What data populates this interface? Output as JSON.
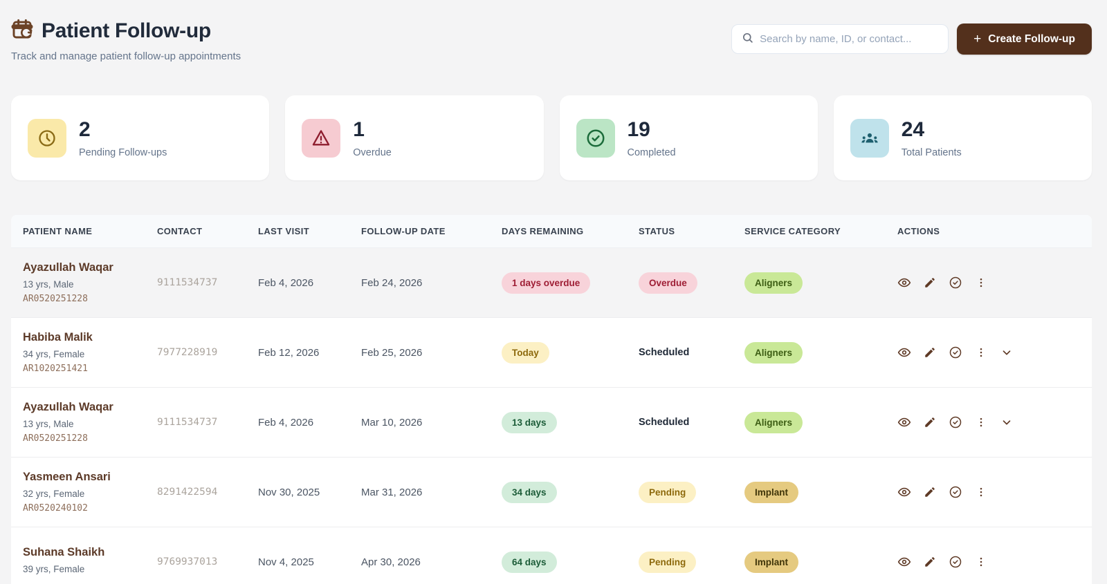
{
  "header": {
    "title": "Patient Follow-up",
    "subtitle": "Track and manage patient follow-up appointments",
    "search_placeholder": "Search by name, ID, or contact...",
    "create_button": "Create Follow-up",
    "create_plus": "+"
  },
  "colors": {
    "accent_brown": "#53301c",
    "patient_name": "#5c3a28",
    "overdue_red": "#9e1d34",
    "pending_gold": "#8d690c",
    "success_green": "#1c5c38",
    "page_background": "#f4f4f5"
  },
  "stats": [
    {
      "value": "2",
      "label": "Pending Follow-ups",
      "icon": "clock-icon",
      "tile_bg": "#fae9a9",
      "icon_color": "#8a6a15"
    },
    {
      "value": "1",
      "label": "Overdue",
      "icon": "alert-triangle-icon",
      "tile_bg": "#f6cbd1",
      "icon_color": "#8e1d2e"
    },
    {
      "value": "19",
      "label": "Completed",
      "icon": "check-circle-icon",
      "tile_bg": "#bbe5c5",
      "icon_color": "#1b6b3a"
    },
    {
      "value": "24",
      "label": "Total Patients",
      "icon": "users-icon",
      "tile_bg": "#bfe2eb",
      "icon_color": "#1d5f6e"
    }
  ],
  "table": {
    "columns": [
      "Patient Name",
      "Contact",
      "Last Visit",
      "Follow-up Date",
      "Days Remaining",
      "Status",
      "Service Category",
      "Actions"
    ],
    "rows": [
      {
        "name": "Ayazullah Waqar",
        "meta": "13 yrs, Male",
        "id": "AR0520251228",
        "contact": "9111534737",
        "last_visit": "Feb 4, 2026",
        "follow_up": "Feb 24, 2026",
        "days_remaining": {
          "text": "1 days overdue",
          "type": "overdue"
        },
        "status": {
          "text": "Overdue",
          "type": "overdue",
          "badge": true
        },
        "category": {
          "text": "Aligners",
          "type": "aligners"
        },
        "highlighted": true,
        "expandable": false
      },
      {
        "name": "Habiba Malik",
        "meta": "34 yrs, Female",
        "id": "AR1020251421",
        "contact": "7977228919",
        "last_visit": "Feb 12, 2026",
        "follow_up": "Feb 25, 2026",
        "days_remaining": {
          "text": "Today",
          "type": "today"
        },
        "status": {
          "text": "Scheduled",
          "type": "scheduled",
          "badge": false
        },
        "category": {
          "text": "Aligners",
          "type": "aligners"
        },
        "highlighted": false,
        "expandable": true
      },
      {
        "name": "Ayazullah Waqar",
        "meta": "13 yrs, Male",
        "id": "AR0520251228",
        "contact": "9111534737",
        "last_visit": "Feb 4, 2026",
        "follow_up": "Mar 10, 2026",
        "days_remaining": {
          "text": "13 days",
          "type": "days"
        },
        "status": {
          "text": "Scheduled",
          "type": "scheduled",
          "badge": false
        },
        "category": {
          "text": "Aligners",
          "type": "aligners"
        },
        "highlighted": false,
        "expandable": true
      },
      {
        "name": "Yasmeen Ansari",
        "meta": "32 yrs, Female",
        "id": "AR0520240102",
        "contact": "8291422594",
        "last_visit": "Nov 30, 2025",
        "follow_up": "Mar 31, 2026",
        "days_remaining": {
          "text": "34 days",
          "type": "days"
        },
        "status": {
          "text": "Pending",
          "type": "pending",
          "badge": true
        },
        "category": {
          "text": "Implant",
          "type": "implant"
        },
        "highlighted": false,
        "expandable": false
      },
      {
        "name": "Suhana Shaikh",
        "meta": "39 yrs, Female",
        "id": "",
        "contact": "9769937013",
        "last_visit": "Nov 4, 2025",
        "follow_up": "Apr 30, 2026",
        "days_remaining": {
          "text": "64 days",
          "type": "days"
        },
        "status": {
          "text": "Pending",
          "type": "pending",
          "badge": true
        },
        "category": {
          "text": "Implant",
          "type": "implant"
        },
        "highlighted": false,
        "expandable": false
      }
    ]
  }
}
